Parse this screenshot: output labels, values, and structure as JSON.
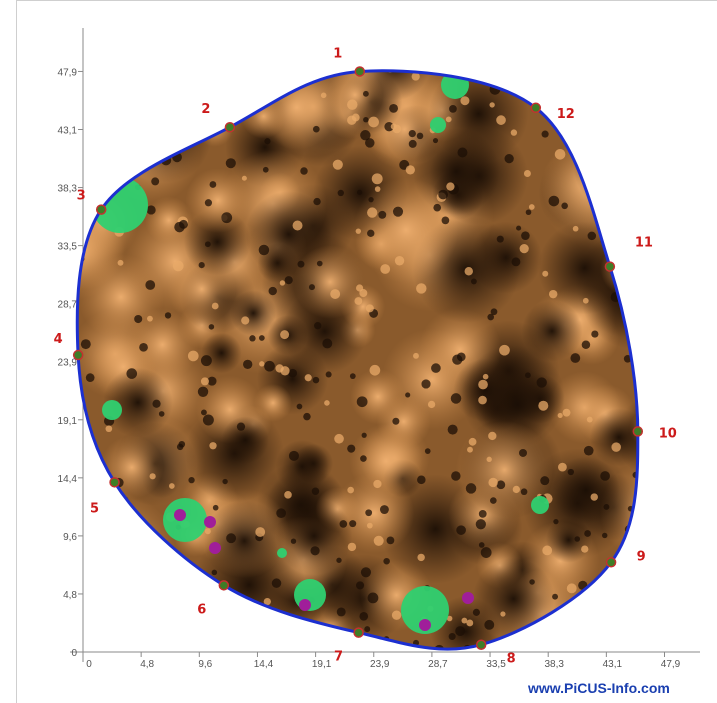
{
  "chart_data": {
    "type": "scatter",
    "title": "",
    "xlabel": "",
    "ylabel": "",
    "xlim": [
      0,
      47.9
    ],
    "ylim": [
      0,
      47.9
    ],
    "x_ticks": [
      "0",
      "4,8",
      "9,6",
      "14,4",
      "19,1",
      "23,9",
      "28,7",
      "33,5",
      "38,3",
      "43,1",
      "47,9"
    ],
    "y_ticks": [
      "0",
      "4,8",
      "9,6",
      "14,4",
      "19,1",
      "23,9",
      "28,7",
      "33,5",
      "38,3",
      "43,1",
      "47,9"
    ],
    "measurement_points": [
      {
        "label": "1",
        "x": 22.8,
        "y": 47.9
      },
      {
        "label": "2",
        "x": 12.1,
        "y": 43.3
      },
      {
        "label": "3",
        "x": 1.5,
        "y": 36.5
      },
      {
        "label": "4",
        "x": -0.4,
        "y": 24.5
      },
      {
        "label": "5",
        "x": 2.6,
        "y": 14.0
      },
      {
        "label": "6",
        "x": 11.6,
        "y": 5.5
      },
      {
        "label": "7",
        "x": 22.7,
        "y": 1.6
      },
      {
        "label": "8",
        "x": 32.8,
        "y": 0.6
      },
      {
        "label": "9",
        "x": 43.5,
        "y": 7.4
      },
      {
        "label": "10",
        "x": 45.7,
        "y": 18.2
      },
      {
        "label": "11",
        "x": 43.4,
        "y": 31.8
      },
      {
        "label": "12",
        "x": 37.3,
        "y": 44.9
      }
    ],
    "grid": false,
    "colors": {
      "outline": "#1c2fd0",
      "dense": "#2a1708",
      "mid": "#8a5a2c",
      "light": "#e0a060",
      "decay_green": "#2fd070",
      "decay_magenta": "#a01e9a",
      "point": "#3f7d26",
      "label": "#cc1a1a"
    }
  },
  "watermark": "www.PiCUS-Info.com"
}
